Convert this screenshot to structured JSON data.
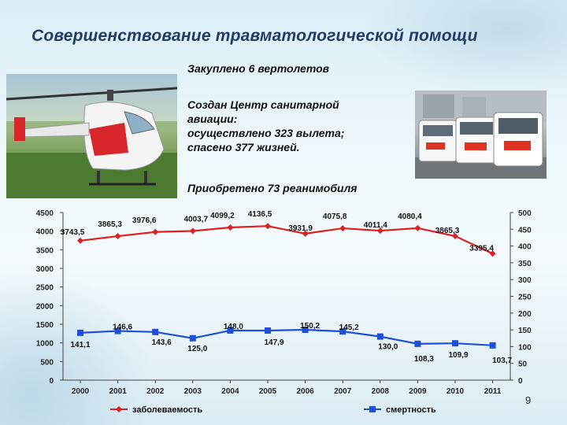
{
  "title": "Совершенствование травматологической помощи",
  "facts": {
    "helicopters": "Закуплено 6 вертолетов",
    "center_line1": "Создан Центр санитарной",
    "center_line2": "авиации:",
    "center_line3": "осуществлено 323 вылета;",
    "center_line4": "спасено 377 жизней.",
    "ambulances": "Приобретено 73 реанимобиля"
  },
  "page_number": "9",
  "colors": {
    "incidence": "#e02020",
    "mortality": "#1f4fd8",
    "title": "#1f3b66"
  },
  "chart_data": {
    "type": "line",
    "x": [
      "2000",
      "2001",
      "2002",
      "2003",
      "2004",
      "2005",
      "2006",
      "2007",
      "2008",
      "2009",
      "2010",
      "2011"
    ],
    "series": [
      {
        "name": "заболеваемость",
        "axis": "left",
        "color": "#e02020",
        "marker": "diamond",
        "values": [
          3743.5,
          3865.3,
          3976.6,
          4003.7,
          4099.2,
          4136.5,
          3931.9,
          4075.8,
          4011.4,
          4080.4,
          3865.3,
          3395.4
        ],
        "labels": [
          "3743,5",
          "3865,3",
          "3976,6",
          "4003,7",
          "4099,2",
          "4136,5",
          "3931,9",
          "4075,8",
          "4011,4",
          "4080,4",
          "3865,3",
          "3395,4"
        ]
      },
      {
        "name": "смертность",
        "axis": "right",
        "color": "#1f4fd8",
        "marker": "square",
        "values": [
          141.1,
          146.6,
          143.6,
          125.0,
          148.0,
          147.9,
          150.2,
          145.2,
          130.0,
          108.3,
          109.9,
          103.7
        ],
        "labels": [
          "141,1",
          "146,6",
          "143,6",
          "125,0",
          "148,0",
          "147,9",
          "150,2",
          "145,2",
          "130,0",
          "108,3",
          "109,9",
          "103,7"
        ]
      }
    ],
    "y_left": {
      "min": 0,
      "max": 4500,
      "ticks": [
        "0",
        "500",
        "1000",
        "1500",
        "2000",
        "2500",
        "3000",
        "3500",
        "4000",
        "4500"
      ]
    },
    "y_right": {
      "min": 0,
      "max": 500,
      "ticks": [
        "0",
        "50",
        "100",
        "150",
        "200",
        "250",
        "300",
        "350",
        "400",
        "450",
        "500"
      ]
    },
    "legend_position": "bottom",
    "grid": false
  }
}
